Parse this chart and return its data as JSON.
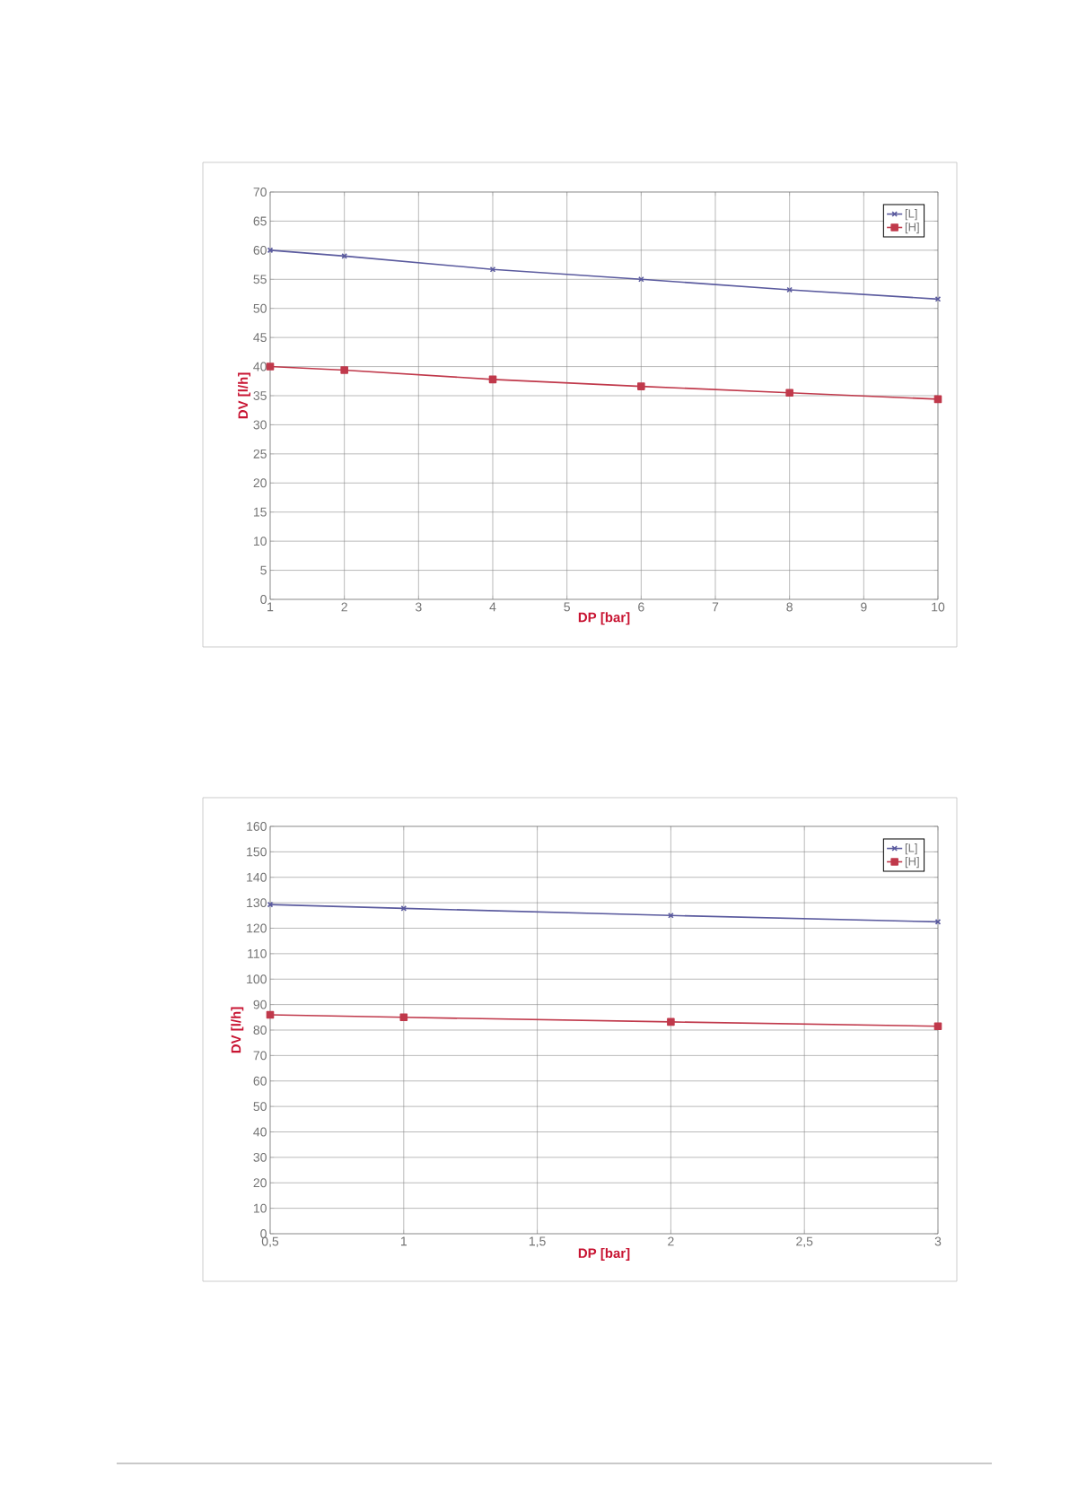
{
  "chart_data": [
    {
      "type": "line",
      "xlabel": "DP [bar]",
      "ylabel": "DV [l/h]",
      "xlim": [
        1,
        10
      ],
      "ylim": [
        0,
        70
      ],
      "xticks": [
        1,
        2,
        3,
        4,
        5,
        6,
        7,
        8,
        9,
        10
      ],
      "yticks": [
        0,
        5,
        10,
        15,
        20,
        25,
        30,
        35,
        40,
        45,
        50,
        55,
        60,
        65,
        70
      ],
      "grid": true,
      "legend": "top right",
      "series": [
        {
          "name": "[L]",
          "color": "#5a5a9e",
          "marker": "cross",
          "x": [
            1,
            2,
            4,
            6,
            8,
            10
          ],
          "values": [
            60,
            59,
            56.7,
            55,
            53.2,
            51.6
          ]
        },
        {
          "name": "[H]",
          "color": "#c0394b",
          "marker": "square",
          "x": [
            1,
            2,
            4,
            6,
            8,
            10
          ],
          "values": [
            40,
            39.4,
            37.8,
            36.6,
            35.5,
            34.4
          ]
        }
      ]
    },
    {
      "type": "line",
      "xlabel": "DP [bar]",
      "ylabel": "DV [l/h]",
      "xlim": [
        0.5,
        3
      ],
      "ylim": [
        0,
        160
      ],
      "xticks": [
        {
          "value": 0.5,
          "label": "0,5"
        },
        1,
        {
          "value": 1.5,
          "label": "1,5"
        },
        2,
        {
          "value": 2.5,
          "label": "2,5"
        },
        3
      ],
      "yticks": [
        0,
        10,
        20,
        30,
        40,
        50,
        60,
        70,
        80,
        90,
        100,
        110,
        120,
        130,
        140,
        150,
        160
      ],
      "grid": true,
      "legend": "top right",
      "series": [
        {
          "name": "[L]",
          "color": "#5a5a9e",
          "marker": "cross",
          "x": [
            0.5,
            1,
            2,
            3
          ],
          "values": [
            129.3,
            127.8,
            125,
            122.5
          ]
        },
        {
          "name": "[H]",
          "color": "#c0394b",
          "marker": "square",
          "x": [
            0.5,
            1,
            2,
            3
          ],
          "values": [
            86,
            85,
            83.2,
            81.5
          ]
        }
      ]
    }
  ]
}
